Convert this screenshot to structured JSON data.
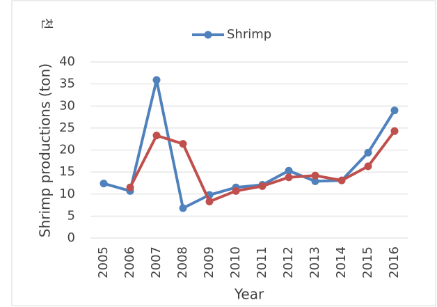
{
  "chart_data": {
    "type": "line",
    "unit_note": "천",
    "y_label": "Shrimp productions (ton)",
    "x_label": "Year",
    "categories": [
      "2005",
      "2006",
      "2007",
      "2008",
      "2009",
      "2010",
      "2011",
      "2012",
      "2013",
      "2014",
      "2015",
      "2016"
    ],
    "series": [
      {
        "name": "Shrimp",
        "color": "#4f81bd",
        "values": [
          12.4,
          10.7,
          35.9,
          6.8,
          9.8,
          11.5,
          12.1,
          15.3,
          12.9,
          13.1,
          19.4,
          29.0
        ]
      },
      {
        "color": "#c0504d",
        "values": [
          null,
          11.5,
          23.3,
          21.4,
          8.3,
          10.7,
          11.8,
          13.8,
          14.2,
          13.1,
          16.3,
          24.3
        ]
      }
    ],
    "ylim": [
      0,
      40
    ],
    "yticks": [
      0,
      5,
      10,
      15,
      20,
      25,
      30,
      35,
      40
    ],
    "grid": true,
    "legend": "top"
  }
}
